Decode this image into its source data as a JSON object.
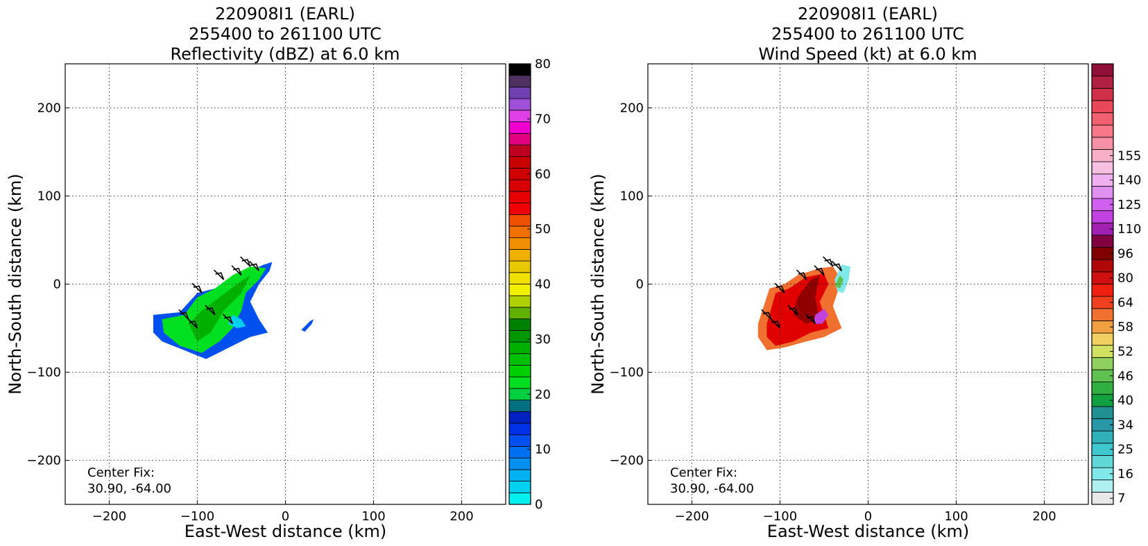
{
  "chart_data": [
    {
      "type": "heatmap",
      "title_lines": [
        "220908I1 (EARL)",
        "255400 to 261100 UTC",
        "Reflectivity (dBZ) at 6.0 km"
      ],
      "xlabel": "East-West distance (km)",
      "ylabel": "North-South distance (km)",
      "xlim": [
        -250,
        250
      ],
      "ylim": [
        -250,
        250
      ],
      "xticks": [
        -200,
        -100,
        0,
        100,
        200
      ],
      "yticks": [
        -200,
        -100,
        0,
        100,
        200
      ],
      "grid": true,
      "annotation_lines": [
        "Center Fix:",
        "30.90, -64.00"
      ],
      "annotation_position": "bottom-left",
      "colorbar": {
        "range": [
          0,
          80
        ],
        "tick_labels": [
          "0",
          "10",
          "20",
          "30",
          "40",
          "50",
          "60",
          "70",
          "80"
        ],
        "tick_values": [
          0,
          10,
          20,
          30,
          40,
          50,
          60,
          70,
          80
        ],
        "colors": [
          "#00f0f0",
          "#00d0f0",
          "#00b0f0",
          "#0090f0",
          "#0070f0",
          "#0050f0",
          "#0030e8",
          "#0020c0",
          "#007080",
          "#00d040",
          "#00e020",
          "#00d000",
          "#00c000",
          "#00b000",
          "#009800",
          "#008000",
          "#60b000",
          "#b0d000",
          "#f0f000",
          "#f0e000",
          "#e8c800",
          "#f0b000",
          "#f09000",
          "#f07000",
          "#f05000",
          "#f00000",
          "#e80000",
          "#d80000",
          "#d00000",
          "#c80000",
          "#c00020",
          "#e00080",
          "#f000d0",
          "#e040e8",
          "#a050d8",
          "#7040b0",
          "#503060",
          "#000000"
        ]
      },
      "data_regions": [
        {
          "name": "main-echo-cluster",
          "x_range": [
            -150,
            -15
          ],
          "y_range": [
            -85,
            30
          ],
          "dominant": "green 20-30 dBZ, blue edges 5-15 dBZ"
        },
        {
          "name": "isolated-echo",
          "x_range": [
            18,
            32
          ],
          "y_range": [
            -55,
            -40
          ],
          "dominant": "blue 10-15 dBZ"
        }
      ]
    },
    {
      "type": "heatmap",
      "title_lines": [
        "220908I1 (EARL)",
        "255400 to 261100 UTC",
        "Wind Speed (kt) at 6.0 km"
      ],
      "xlabel": "East-West distance (km)",
      "ylabel": "North-South distance (km)",
      "xlim": [
        -250,
        250
      ],
      "ylim": [
        -250,
        250
      ],
      "xticks": [
        -200,
        -100,
        0,
        100,
        200
      ],
      "yticks": [
        -200,
        -100,
        0,
        100,
        200
      ],
      "grid": true,
      "annotation_lines": [
        "Center Fix:",
        "30.90, -64.00"
      ],
      "annotation_position": "bottom-left",
      "colorbar": {
        "tick_labels": [
          "7",
          "16",
          "25",
          "34",
          "40",
          "46",
          "52",
          "58",
          "64",
          "80",
          "96",
          "110",
          "125",
          "140",
          "155"
        ],
        "tick_bin_index": [
          0,
          2,
          4,
          6,
          8,
          10,
          12,
          14,
          16,
          18,
          20,
          22,
          24,
          26,
          28
        ],
        "colors": [
          "#e8e8e8",
          "#b0f0f0",
          "#80e8e8",
          "#60d8d8",
          "#40c8d0",
          "#30b0b8",
          "#2898a8",
          "#209090",
          "#10a040",
          "#30b040",
          "#60c050",
          "#90d060",
          "#d0e060",
          "#f0d060",
          "#f0a040",
          "#f07030",
          "#f04020",
          "#f02010",
          "#d01010",
          "#b00808",
          "#800000",
          "#800040",
          "#a020b0",
          "#c040e0",
          "#d060f0",
          "#e090f0",
          "#f0b0f0",
          "#f8c0e0",
          "#f8b0c8",
          "#f890a8",
          "#f87888",
          "#f06070",
          "#e84858",
          "#d03048",
          "#b02040",
          "#901038"
        ]
      },
      "data_regions": [
        {
          "name": "high-wind-band",
          "x_range": [
            -125,
            -25
          ],
          "y_range": [
            -75,
            5
          ],
          "dominant": "red 52-64 kt, dark red 58-64 kt"
        },
        {
          "name": "eastern-edge",
          "x_range": [
            -45,
            -20
          ],
          "y_range": [
            -10,
            25
          ],
          "dominant": "cyan/green 16-40 kt"
        }
      ]
    }
  ]
}
